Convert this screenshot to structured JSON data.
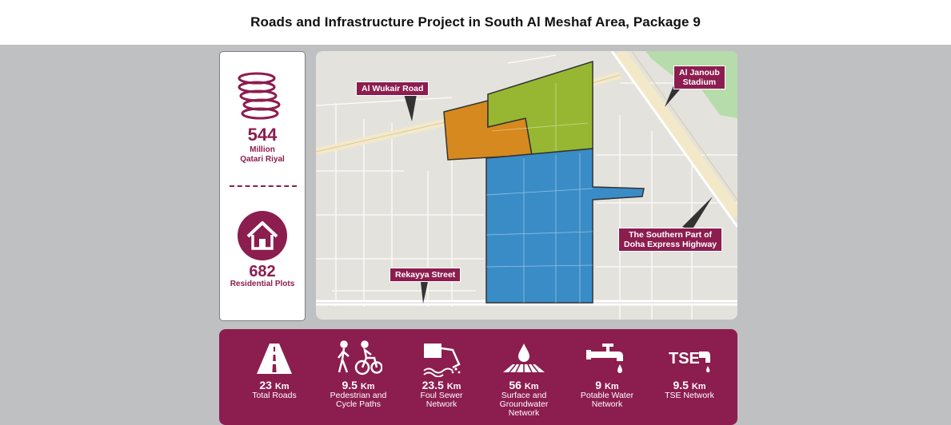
{
  "header": {
    "title": "Roads and Infrastructure Project in South Al Meshaf Area, Package 9"
  },
  "stats": {
    "cost_value": "544",
    "cost_unit_line1": "Million",
    "cost_unit_line2": "Qatari Riyal",
    "plots_value": "682",
    "plots_label": "Residential Plots"
  },
  "map": {
    "labels": {
      "al_wukair_road": "Al Wukair Road",
      "al_janoub_line1": "Al Janoub",
      "al_janoub_line2": "Stadium",
      "southern_line1": "The Southern Part of",
      "southern_line2": "Doha Express Highway",
      "rekayya_street": "Rekayya Street"
    },
    "colors": {
      "orange_zone": "#d6891e",
      "green_zone": "#97b732",
      "blue_zone": "#3a8cc7",
      "accent": "#8c1d4f"
    }
  },
  "metrics": [
    {
      "icon": "road-icon",
      "value": "23",
      "unit": "Km",
      "label_line1": "Total Roads",
      "label_line2": "",
      "label_line3": ""
    },
    {
      "icon": "pedestrian-cyclist-icon",
      "value": "9.5",
      "unit": "Km",
      "label_line1": "Pedestrian and",
      "label_line2": "Cycle Paths",
      "label_line3": ""
    },
    {
      "icon": "foul-sewer-icon",
      "value": "23.5",
      "unit": "Km",
      "label_line1": "Foul Sewer",
      "label_line2": "Network",
      "label_line3": ""
    },
    {
      "icon": "water-drop-icon",
      "value": "56",
      "unit": "Km",
      "label_line1": "Surface and",
      "label_line2": "Groundwater",
      "label_line3": "Network"
    },
    {
      "icon": "water-tap-icon",
      "value": "9",
      "unit": "Km",
      "label_line1": "Potable Water",
      "label_line2": "Network",
      "label_line3": ""
    },
    {
      "icon": "tse-icon",
      "icon_text": "TSE",
      "value": "9.5",
      "unit": "Km",
      "label_line1": "TSE Network",
      "label_line2": "",
      "label_line3": ""
    }
  ]
}
